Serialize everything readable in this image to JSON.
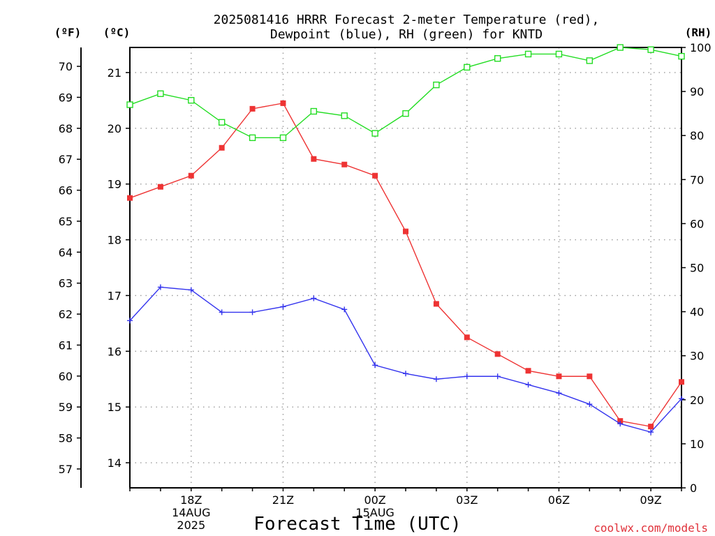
{
  "chart_data": {
    "type": "line",
    "title_line1": "2025081416 HRRR Forecast 2-meter Temperature (red),",
    "title_line2": "Dewpoint (blue), RH (green) for KNTD",
    "unit_f": "(ºF)",
    "unit_c": "(ºC)",
    "unit_rh": "(RH)",
    "xlabel": "Forecast Time (UTC)",
    "credit": "coolwx.com/models",
    "x_hours": [
      16,
      17,
      18,
      19,
      20,
      21,
      22,
      23,
      24,
      25,
      26,
      27,
      28,
      29,
      30,
      31,
      32,
      33,
      34
    ],
    "xlim": [
      16,
      34
    ],
    "x_ticks": [
      {
        "hour": 18,
        "lines": [
          "18Z",
          "14AUG",
          "2025"
        ]
      },
      {
        "hour": 21,
        "lines": [
          "21Z"
        ]
      },
      {
        "hour": 24,
        "lines": [
          "00Z",
          "15AUG"
        ]
      },
      {
        "hour": 27,
        "lines": [
          "03Z"
        ]
      },
      {
        "hour": 30,
        "lines": [
          "06Z"
        ]
      },
      {
        "hour": 33,
        "lines": [
          "09Z"
        ]
      }
    ],
    "ylim_c": [
      13.55,
      21.45
    ],
    "y_ticks_c": [
      "14",
      "15",
      "16",
      "17",
      "18",
      "19",
      "20",
      "21"
    ],
    "y_ticks_f": [
      "57",
      "58",
      "59",
      "60",
      "61",
      "62",
      "63",
      "64",
      "65",
      "66",
      "67",
      "68",
      "69",
      "70"
    ],
    "ylim_rh": [
      0,
      100
    ],
    "y_ticks_rh": [
      "0",
      "10",
      "20",
      "30",
      "40",
      "50",
      "60",
      "70",
      "80",
      "90",
      "100"
    ],
    "grid": true,
    "series": [
      {
        "name": "Temperature",
        "color": "#ee3333",
        "axis": "celsius",
        "marker": "filled-square",
        "values": [
          18.75,
          18.95,
          19.15,
          19.65,
          20.35,
          20.45,
          19.45,
          19.35,
          19.15,
          18.15,
          16.85,
          16.25,
          15.95,
          15.65,
          15.55,
          15.55,
          14.75,
          14.65,
          15.45
        ]
      },
      {
        "name": "Dewpoint",
        "color": "#3333ee",
        "axis": "celsius",
        "marker": "plus",
        "values": [
          16.55,
          17.15,
          17.1,
          16.7,
          16.7,
          16.8,
          16.95,
          16.75,
          15.75,
          15.6,
          15.5,
          15.55,
          15.55,
          15.4,
          15.25,
          15.05,
          14.7,
          14.55,
          15.15
        ]
      },
      {
        "name": "RH",
        "color": "#22dd22",
        "axis": "rh",
        "marker": "open-square",
        "values": [
          87,
          89.5,
          88,
          83,
          79.5,
          79.5,
          85.5,
          84.5,
          80.5,
          85,
          91.5,
          95.5,
          97.5,
          98.5,
          98.5,
          97,
          100,
          99.5,
          98
        ]
      }
    ]
  }
}
